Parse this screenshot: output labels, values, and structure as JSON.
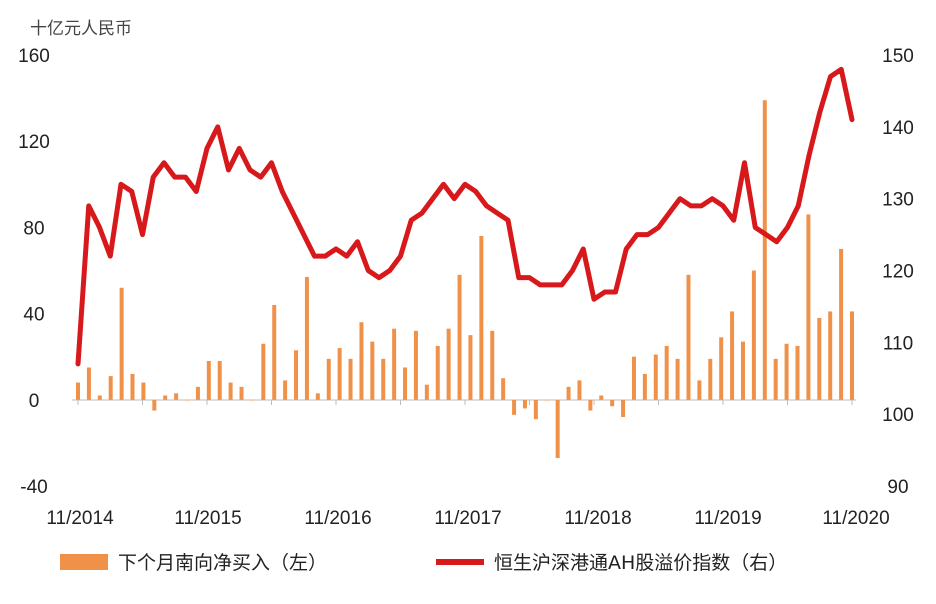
{
  "chart_data": {
    "type": "bar+line",
    "unit_label": "十亿元人民币",
    "x_labels": [
      "11/2014",
      "11/2015",
      "11/2016",
      "11/2017",
      "11/2018",
      "11/2019",
      "11/2020"
    ],
    "left_axis": {
      "ticks": [
        160,
        120,
        80,
        40,
        0,
        -40
      ],
      "range": [
        -40,
        160
      ]
    },
    "right_axis": {
      "ticks": [
        150,
        140,
        130,
        120,
        110,
        100,
        90
      ],
      "range": [
        90,
        150
      ]
    },
    "bars": {
      "name": "下个月南向净买入（左）",
      "color": "#f0914a",
      "values": [
        8,
        15,
        2,
        11,
        52,
        12,
        8,
        -5,
        2,
        3,
        0,
        6,
        18,
        18,
        8,
        6,
        0,
        26,
        44,
        9,
        23,
        57,
        3,
        19,
        24,
        19,
        36,
        27,
        19,
        33,
        15,
        32,
        7,
        25,
        33,
        58,
        30,
        76,
        32,
        10,
        -7,
        -4,
        -9,
        0,
        -27,
        6,
        9,
        -5,
        2,
        -3,
        -8,
        20,
        12,
        21,
        25,
        19,
        58,
        9,
        19,
        29,
        41,
        27,
        60,
        139,
        19,
        26,
        25,
        86,
        38,
        41,
        70,
        41
      ]
    },
    "line": {
      "name": "恒生沪深港通AH股溢价指数（右）",
      "color": "#d7191c",
      "values": [
        107,
        129,
        126,
        122,
        132,
        131,
        125,
        133,
        135,
        133,
        133,
        131,
        137,
        140,
        134,
        137,
        134,
        133,
        135,
        131,
        128,
        125,
        122,
        122,
        123,
        122,
        124,
        120,
        119,
        120,
        122,
        127,
        128,
        130,
        132,
        130,
        132,
        131,
        129,
        128,
        127,
        119,
        119,
        118,
        118,
        118,
        120,
        123,
        116,
        117,
        117,
        123,
        125,
        125,
        126,
        128,
        130,
        129,
        129,
        130,
        129,
        127,
        135,
        126,
        125,
        124,
        126,
        129,
        136,
        142,
        147,
        148,
        141
      ]
    }
  }
}
